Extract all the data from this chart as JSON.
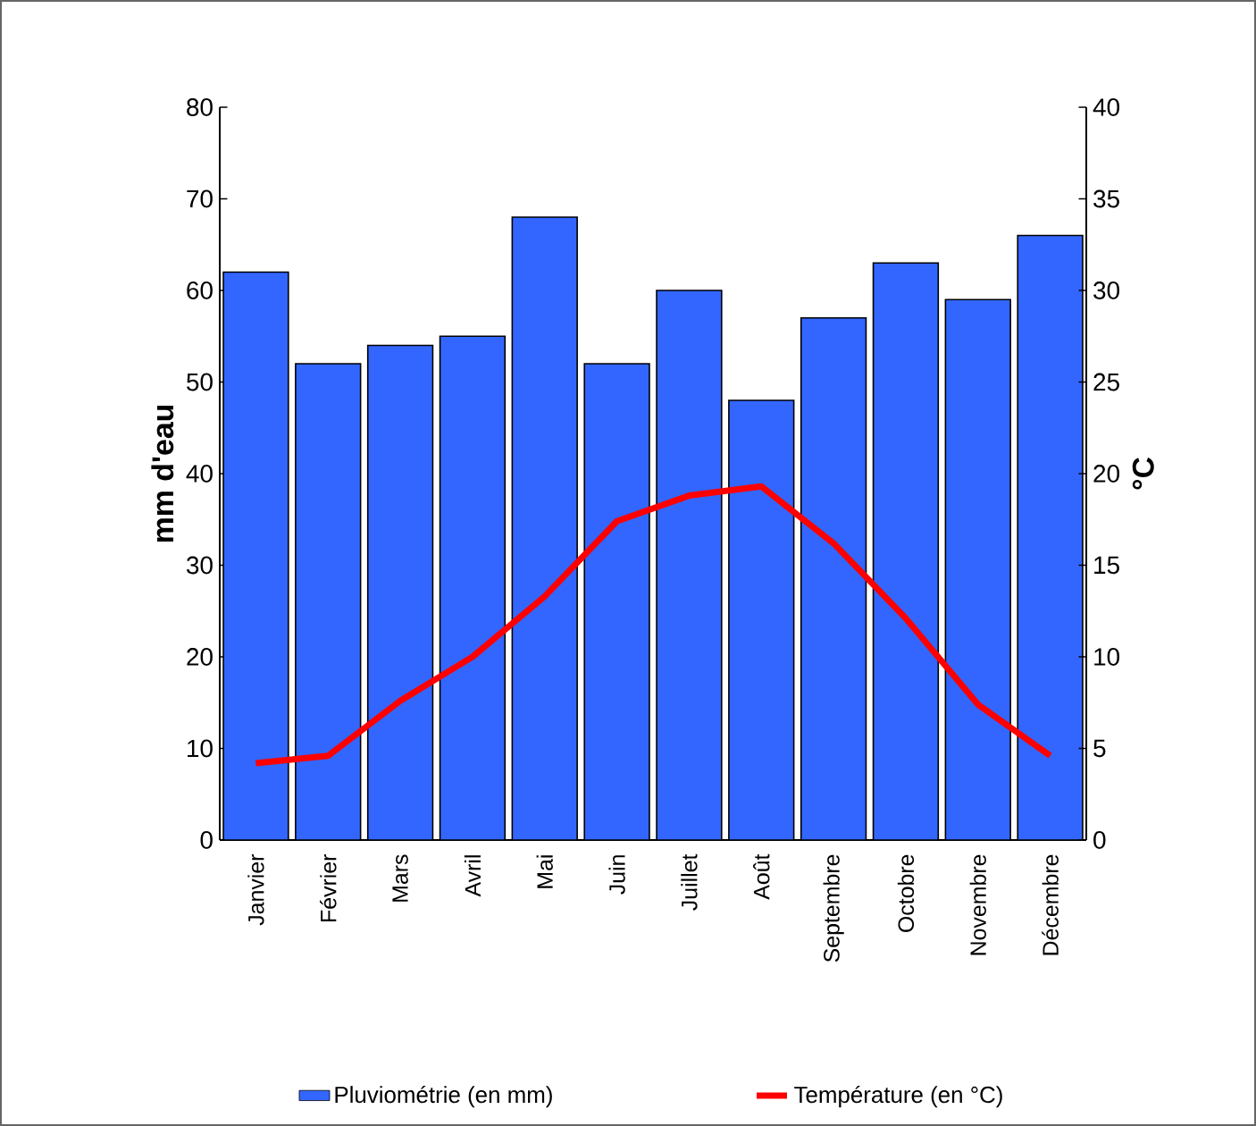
{
  "chart_data": {
    "type": "bar",
    "ylabel": "mm d'eau",
    "y2label": "°C",
    "categories": [
      "Janvier",
      "Février",
      "Mars",
      "Avril",
      "Mai",
      "Juin",
      "Juillet",
      "Août",
      "Septembre",
      "Octobre",
      "Novembre",
      "Décembre"
    ],
    "series": [
      {
        "name": "Pluviométrie (en mm)",
        "color": "#3366ff",
        "values": [
          62,
          52,
          54,
          55,
          68,
          52,
          60,
          48,
          57,
          63,
          59,
          66
        ]
      },
      {
        "name": "Température (en °C)",
        "type": "line",
        "axis": "y2",
        "color": "#ff0000",
        "values": [
          4.2,
          4.6,
          7.6,
          10,
          13.3,
          17.4,
          18.8,
          19.3,
          16.2,
          12.1,
          7.4,
          4.6
        ]
      }
    ],
    "ylim": [
      0,
      80
    ],
    "yticks": [
      0,
      10,
      20,
      30,
      40,
      50,
      60,
      70,
      80
    ],
    "y2lim": [
      0,
      40
    ],
    "y2ticks": [
      0,
      5,
      10,
      15,
      20,
      25,
      30,
      35,
      40
    ],
    "legend": "bottom",
    "marker": "none"
  }
}
